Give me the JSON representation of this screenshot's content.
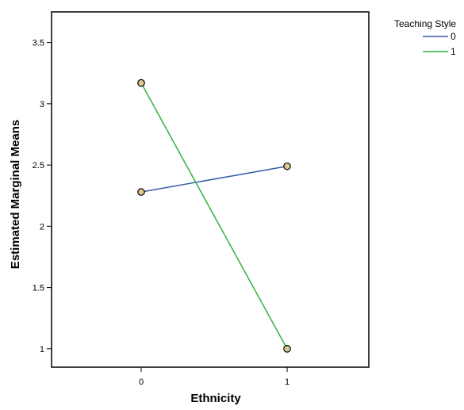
{
  "chart_data": {
    "type": "line",
    "xlabel": "Ethnicity",
    "ylabel": "Estimated Marginal Means",
    "x_categories": [
      "0",
      "1"
    ],
    "ylim": [
      0.85,
      3.75
    ],
    "y_ticks": [
      1,
      1.5,
      2,
      2.5,
      3,
      3.5
    ],
    "y_tick_labels": [
      "1",
      "1.5",
      "2",
      "2.5",
      "3",
      "3.5"
    ],
    "grid": false,
    "legend": {
      "title": "Teaching Style",
      "placement": "top-right outside"
    },
    "series": [
      {
        "name": "0",
        "color": "#3a5ba8",
        "values": [
          2.28,
          2.49
        ]
      },
      {
        "name": "1",
        "color": "#2fb43a",
        "values": [
          3.17,
          1.0
        ]
      }
    ],
    "marker_fill": "#d9cb8f"
  }
}
